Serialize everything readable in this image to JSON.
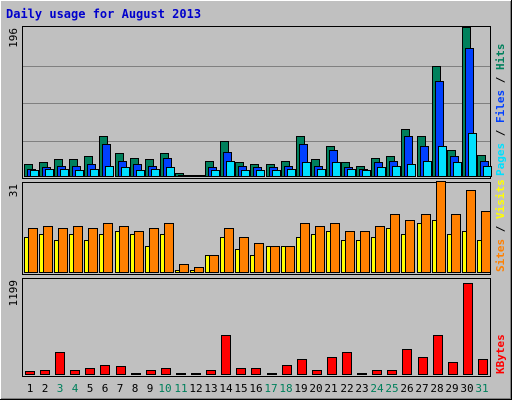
{
  "colors": {
    "background": "#c0c0c0",
    "border_light": "#ffffff",
    "border_dark": "#808080",
    "frame": "#000000",
    "gridline": "#808080",
    "title": "#0000cc",
    "hits": "#00805c",
    "files": "#0040ff",
    "pages": "#00e0ff",
    "visits": "#ffff00",
    "sites": "#ff8000",
    "kbytes": "#ff0000",
    "weekend_label": "#00805c",
    "weekday_label": "#000000",
    "legend_separator": "#000000"
  },
  "chart_data": {
    "type": "bar",
    "title": "Daily usage for August 2013",
    "categories": [
      "1",
      "2",
      "3",
      "4",
      "5",
      "6",
      "7",
      "8",
      "9",
      "10",
      "11",
      "12",
      "13",
      "14",
      "15",
      "16",
      "17",
      "18",
      "19",
      "20",
      "21",
      "22",
      "23",
      "24",
      "25",
      "26",
      "27",
      "28",
      "29",
      "30",
      "31"
    ],
    "weekend_days": [
      3,
      4,
      10,
      11,
      17,
      18,
      24,
      25,
      31
    ],
    "panels": [
      {
        "name": "hits-files-pages",
        "ymax_label": "196",
        "ymax": 196,
        "legend": [
          {
            "text": "Pages",
            "color_key": "pages"
          },
          {
            "text": "Files",
            "color_key": "files"
          },
          {
            "text": "Hits",
            "color_key": "hits"
          }
        ],
        "series": [
          {
            "name": "Hits",
            "color_key": "hits",
            "values": [
              17,
              19,
              23,
              23,
              27,
              53,
              31,
              25,
              23,
              31,
              5,
              3,
              21,
              47,
              19,
              17,
              17,
              21,
              53,
              23,
              41,
              19,
              15,
              25,
              27,
              63,
              53,
              145,
              35,
              196,
              29
            ]
          },
          {
            "name": "Files",
            "color_key": "files",
            "values": [
              11,
              13,
              15,
              15,
              17,
              43,
              21,
              17,
              15,
              25,
              3,
              2,
              13,
              33,
              15,
              13,
              13,
              15,
              43,
              15,
              35,
              13,
              11,
              19,
              21,
              53,
              41,
              125,
              27,
              168,
              21
            ]
          },
          {
            "name": "Pages",
            "color_key": "pages",
            "values": [
              9,
              11,
              11,
              9,
              11,
              15,
              13,
              9,
              11,
              13,
              3,
              2,
              9,
              21,
              9,
              9,
              9,
              11,
              19,
              11,
              19,
              11,
              9,
              13,
              15,
              17,
              21,
              41,
              19,
              57,
              15
            ]
          }
        ]
      },
      {
        "name": "visits-sites",
        "ymax_label": "31",
        "ymax": 31,
        "legend": [
          {
            "text": "Sites",
            "color_key": "sites"
          },
          {
            "text": "Visits",
            "color_key": "visits"
          }
        ],
        "series": [
          {
            "name": "Visits",
            "color_key": "visits",
            "values": [
              12,
              13,
              11,
              13,
              11,
              13,
              14,
              13,
              9,
              13,
              1,
              1,
              6,
              12,
              8,
              6,
              9,
              9,
              12,
              13,
              14,
              11,
              11,
              12,
              15,
              13,
              17,
              18,
              13,
              14,
              11
            ]
          },
          {
            "name": "Sites",
            "color_key": "sites",
            "values": [
              15,
              16,
              15,
              16,
              15,
              17,
              16,
              14,
              15,
              17,
              3,
              2,
              6,
              15,
              12,
              10,
              9,
              9,
              17,
              16,
              17,
              14,
              14,
              16,
              20,
              18,
              20,
              31,
              20,
              28,
              21
            ]
          }
        ]
      },
      {
        "name": "kbytes",
        "ymax_label": "1199",
        "ymax": 1199,
        "legend": [
          {
            "text": "KBytes",
            "color_key": "kbytes"
          }
        ],
        "series": [
          {
            "name": "KBytes",
            "color_key": "kbytes",
            "values": [
              48,
              71,
              297,
              71,
              96,
              136,
              120,
              24,
              71,
              96,
              24,
              24,
              71,
              517,
              96,
              96,
              24,
              136,
              207,
              71,
              232,
              297,
              24,
              71,
              71,
              345,
              232,
              517,
              168,
              1199,
              207
            ]
          }
        ]
      }
    ]
  }
}
